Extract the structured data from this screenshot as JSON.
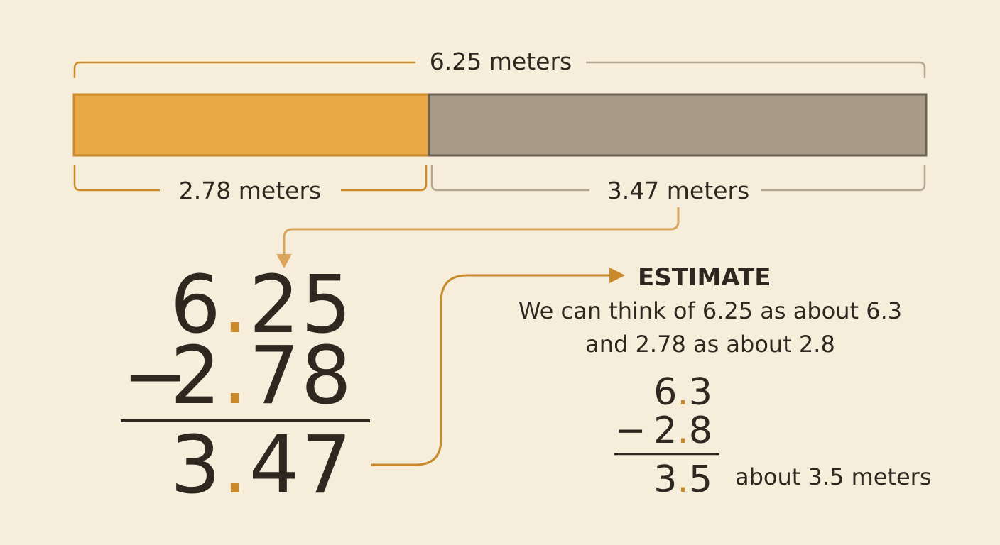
{
  "bar": {
    "total_label": "6.25 meters",
    "left_label": "2.78 meters",
    "right_label": "3.47 meters"
  },
  "subtraction": {
    "minuend": "6.25",
    "operator": "−",
    "subtrahend": "2.78",
    "difference": "3.47"
  },
  "estimate": {
    "title": "ESTIMATE",
    "lines": [
      "We can think of 6.25 as about 6.3",
      "and 2.78 as about 2.8"
    ],
    "minuend": "6.3",
    "operator": "−",
    "subtrahend": "2.8",
    "difference": "3.5",
    "result": "about 3.5 meters"
  }
}
